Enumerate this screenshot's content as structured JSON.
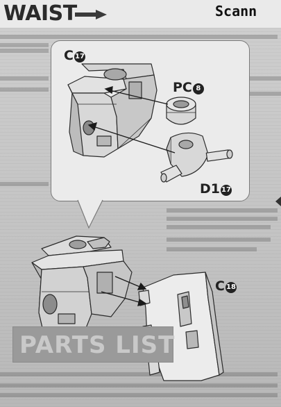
{
  "header": {
    "title": "WAIST",
    "watermark": "Scann"
  },
  "step_detail": {
    "parts": [
      {
        "letter": "C",
        "number": "17"
      },
      {
        "letter": "PC",
        "number": "8"
      },
      {
        "letter": "D1",
        "number": "17"
      }
    ]
  },
  "step_main": {
    "parts": [
      {
        "letter": "C",
        "number": "18"
      }
    ]
  },
  "footer": {
    "banner": "PARTS LIST"
  },
  "colors": {
    "line": "#2a2a2a",
    "part_fill": "#dedede",
    "part_shade": "#b4b4b4",
    "callout_bg": "#ebebeb"
  }
}
